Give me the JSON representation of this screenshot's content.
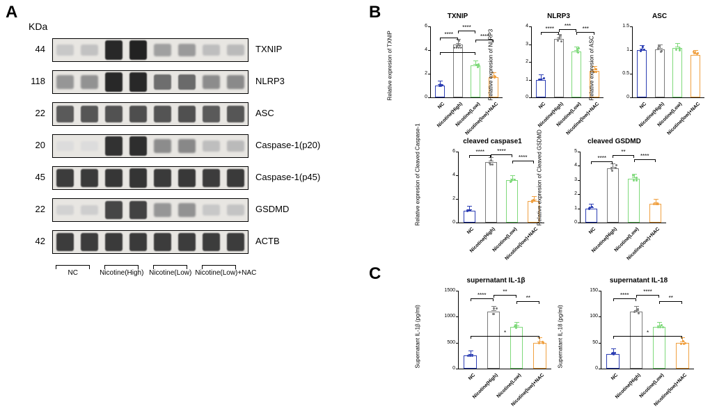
{
  "panels": {
    "A": "A",
    "B": "B",
    "C": "C"
  },
  "colors": {
    "nc": "#2b3db3",
    "high": "#7a7a7a",
    "low": "#7ed97a",
    "nac": "#f0a040"
  },
  "groups": [
    "NC",
    "Nicotine(High)",
    "Nicotine(Low)",
    "Nicotine(low)+NAC"
  ],
  "panelA": {
    "kda": "KDa",
    "rows": [
      {
        "mw": "44",
        "name": "TXNIP",
        "bands": [
          0.15,
          0.18,
          0.95,
          0.98,
          0.35,
          0.38,
          0.2,
          0.22
        ]
      },
      {
        "mw": "118",
        "name": "NLRP3",
        "bands": [
          0.4,
          0.42,
          0.95,
          0.95,
          0.6,
          0.62,
          0.45,
          0.46
        ]
      },
      {
        "mw": "22",
        "name": "ASC",
        "bands": [
          0.7,
          0.72,
          0.74,
          0.76,
          0.73,
          0.75,
          0.7,
          0.72
        ]
      },
      {
        "mw": "20",
        "name": "Caspase-1(p20)",
        "bands": [
          0.05,
          0.05,
          0.9,
          0.92,
          0.45,
          0.47,
          0.2,
          0.22
        ]
      },
      {
        "mw": "45",
        "name": "Caspase-1(p45)",
        "bands": [
          0.85,
          0.86,
          0.88,
          0.89,
          0.86,
          0.87,
          0.85,
          0.86
        ]
      },
      {
        "mw": "22",
        "name": "GSDMD",
        "bands": [
          0.1,
          0.12,
          0.8,
          0.82,
          0.4,
          0.42,
          0.15,
          0.17
        ]
      },
      {
        "mw": "42",
        "name": "ACTB",
        "bands": [
          0.85,
          0.85,
          0.86,
          0.86,
          0.85,
          0.85,
          0.85,
          0.85
        ]
      }
    ],
    "group_labels": [
      "NC",
      "Nicotine(High)",
      "Nicotine(Low)",
      "Nicotine(Low)+NAC"
    ]
  },
  "panelB": {
    "charts": [
      {
        "title": "TXNIP",
        "ylabel": "Relative expresion of TXNIP",
        "ymax": 6,
        "ystep": 2,
        "values": [
          1.0,
          4.5,
          2.7,
          1.7
        ],
        "sig": [
          [
            "****",
            0,
            1
          ],
          [
            "****",
            0,
            2
          ],
          [
            "****",
            1,
            2
          ],
          [
            "****",
            2,
            3
          ]
        ]
      },
      {
        "title": "NLRP3",
        "ylabel": "Relative expresion of NLRP3",
        "ymax": 4,
        "ystep": 1,
        "values": [
          1.0,
          3.3,
          2.6,
          1.5
        ],
        "sig": [
          [
            "****",
            0,
            1
          ],
          [
            "***",
            1,
            2
          ],
          [
            "***",
            2,
            3
          ]
        ]
      },
      {
        "title": "ASC",
        "ylabel": "Relative expresion of ASC",
        "ymax": 1.5,
        "ystep": 0.5,
        "values": [
          1.0,
          1.02,
          1.05,
          0.9
        ],
        "sig": []
      },
      {
        "title": "cleaved caspase1",
        "ylabel": "Relative expresion of Cleaved Caspase-1",
        "ymax": 6,
        "ystep": 2,
        "values": [
          1.0,
          5.1,
          3.6,
          1.8
        ],
        "sig": [
          [
            "****",
            0,
            1
          ],
          [
            "****",
            1,
            2
          ],
          [
            "****",
            2,
            3
          ]
        ]
      },
      {
        "title": "cleaved GSDMD",
        "ylabel": "Relative expresion of Cleaved GSDMD",
        "ymax": 5,
        "ystep": 1,
        "values": [
          1.0,
          3.8,
          3.1,
          1.3
        ],
        "sig": [
          [
            "****",
            0,
            1
          ],
          [
            "**",
            1,
            2
          ],
          [
            "****",
            2,
            3
          ]
        ]
      }
    ]
  },
  "panelC": {
    "charts": [
      {
        "title": "supernatant IL-1β",
        "ylabel": "Supernatant IL-1β (pg/ml)",
        "ymax": 1500,
        "ystep": 500,
        "values": [
          250,
          1100,
          800,
          500
        ],
        "sig": [
          [
            "*",
            0,
            3
          ],
          [
            "****",
            0,
            1
          ],
          [
            "**",
            1,
            2
          ],
          [
            "**",
            2,
            3
          ]
        ]
      },
      {
        "title": "supernatant IL-18",
        "ylabel": "Supernatant IL-18 (pg/ml)",
        "ymax": 150,
        "ystep": 50,
        "values": [
          28,
          110,
          80,
          50
        ],
        "sig": [
          [
            "*",
            0,
            3
          ],
          [
            "****",
            0,
            1
          ],
          [
            "****",
            1,
            2
          ],
          [
            "**",
            2,
            3
          ]
        ]
      }
    ]
  }
}
